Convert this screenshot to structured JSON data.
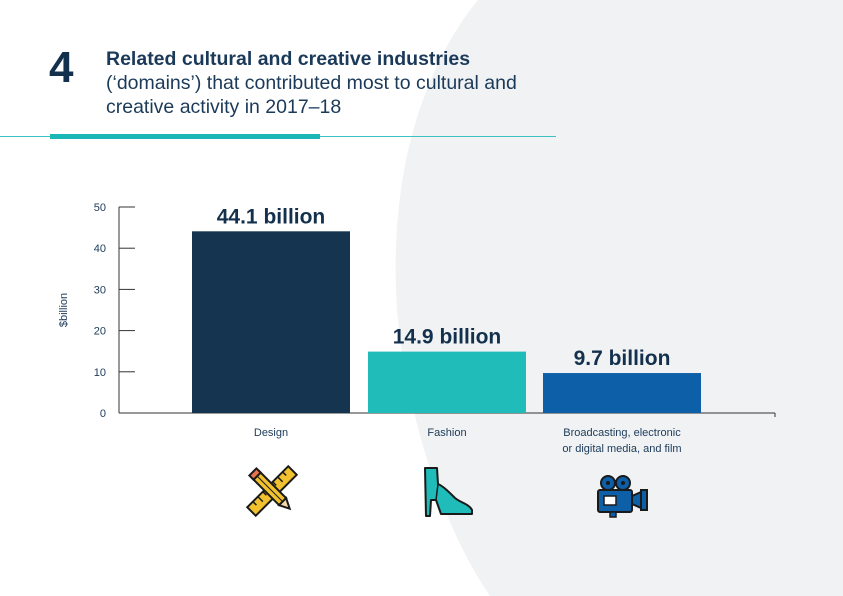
{
  "header": {
    "figure_number": "4",
    "title_bold": "Related cultural and creative industries",
    "title_rest": "(‘domains’) that contributed most to cultural and creative activity in 2017–18"
  },
  "chart_data": {
    "type": "bar",
    "categories": [
      "Design",
      "Fashion",
      "Broadcasting, electronic or digital media, and film"
    ],
    "category_lines": [
      [
        "Design"
      ],
      [
        "Fashion"
      ],
      [
        "Broadcasting, electronic",
        "or digital media, and film"
      ]
    ],
    "values": [
      44.1,
      14.9,
      9.7
    ],
    "data_labels": [
      "44.1 billion",
      "14.9 billion",
      "9.7 billion"
    ],
    "bar_colors": [
      "#14344f",
      "#1fbcba",
      "#0d5fa8"
    ],
    "ylabel": "$billion",
    "ylim": [
      0,
      50
    ],
    "yticks": [
      0,
      10,
      20,
      30,
      40,
      50
    ],
    "grid": false,
    "icons": [
      "pencil-ruler-icon",
      "high-heel-shoe-icon",
      "video-camera-icon"
    ]
  }
}
